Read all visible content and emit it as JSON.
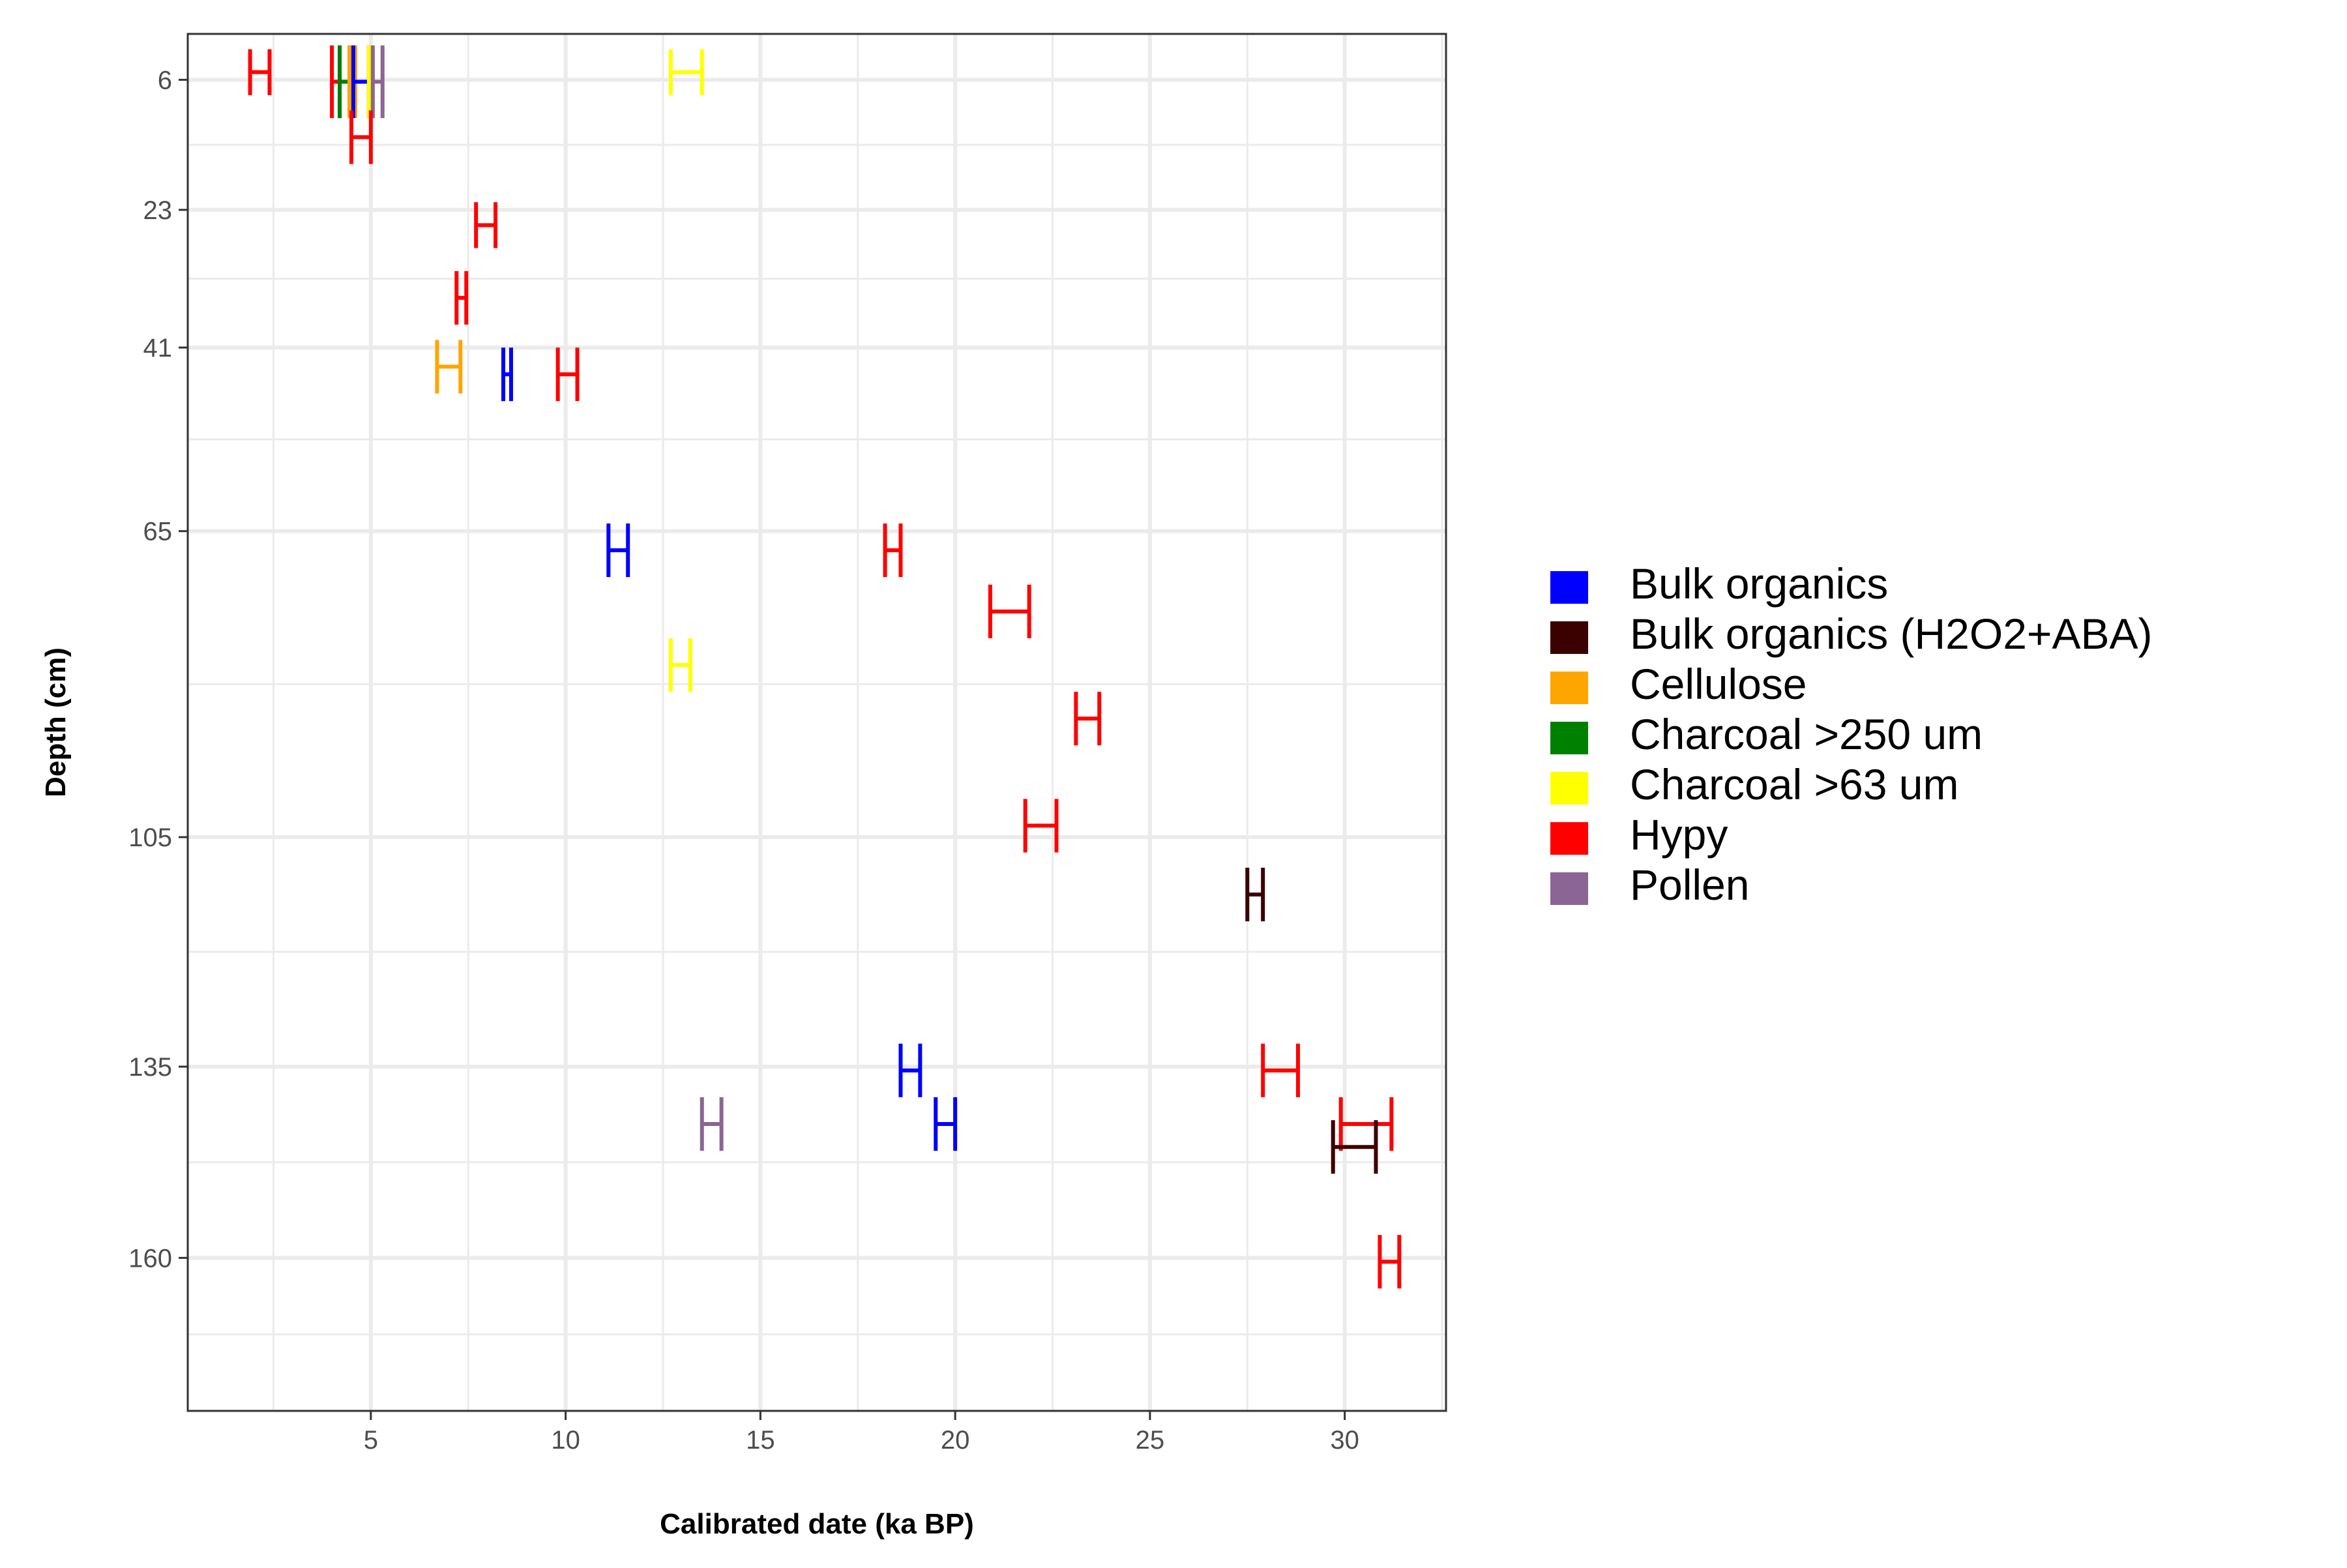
{
  "chart_data": {
    "type": "errorbar",
    "xlabel": "Calibrated date (ka BP)",
    "ylabel": "Depth (cm)",
    "xlim": [
      0.3,
      32.6
    ],
    "ylim": [
      0,
      180
    ],
    "y_reversed": true,
    "x_ticks": [
      5,
      10,
      15,
      20,
      25,
      30
    ],
    "y_ticks": [
      6,
      23,
      41,
      65,
      105,
      135,
      160
    ],
    "grid": true,
    "legend_position": "right",
    "legend": [
      {
        "label": "Bulk organics",
        "color": "#0000FF"
      },
      {
        "label": "Bulk organics (H2O2+ABA)",
        "color": "#3B0000"
      },
      {
        "label": "Cellulose",
        "color": "#FFA500"
      },
      {
        "label": "Charcoal >250 um",
        "color": "#008000"
      },
      {
        "label": "Charcoal >63 um",
        "color": "#FFFF00"
      },
      {
        "label": "Hypy",
        "color": "#FF0000"
      },
      {
        "label": "Pollen",
        "color": "#8B6593"
      }
    ],
    "points": [
      {
        "series": "Hypy",
        "xmin": 1.9,
        "xmax": 2.4,
        "y_top": 2,
        "y_bottom": 8
      },
      {
        "series": "Hypy",
        "xmin": 4.0,
        "xmax": 4.2,
        "y_top": 1.5,
        "y_bottom": 11
      },
      {
        "series": "Charcoal >250 um",
        "xmin": 4.2,
        "xmax": 4.5,
        "y_top": 1.5,
        "y_bottom": 11
      },
      {
        "series": "Cellulose",
        "xmin": 4.45,
        "xmax": 4.6,
        "y_top": 1.5,
        "y_bottom": 11
      },
      {
        "series": "Bulk organics",
        "xmin": 4.55,
        "xmax": 4.95,
        "y_top": 1.5,
        "y_bottom": 11
      },
      {
        "series": "Charcoal >63 um",
        "xmin": 4.95,
        "xmax": 5.05,
        "y_top": 1.5,
        "y_bottom": 11
      },
      {
        "series": "Pollen",
        "xmin": 5.05,
        "xmax": 5.3,
        "y_top": 1.5,
        "y_bottom": 11
      },
      {
        "series": "Charcoal >63 um",
        "xmin": 12.7,
        "xmax": 13.5,
        "y_top": 2,
        "y_bottom": 8
      },
      {
        "series": "Hypy",
        "xmin": 4.5,
        "xmax": 5.0,
        "y_top": 10,
        "y_bottom": 17
      },
      {
        "series": "Hypy",
        "xmin": 7.7,
        "xmax": 8.2,
        "y_top": 22,
        "y_bottom": 28
      },
      {
        "series": "Hypy",
        "xmin": 7.2,
        "xmax": 7.45,
        "y_top": 31,
        "y_bottom": 38
      },
      {
        "series": "Cellulose",
        "xmin": 6.7,
        "xmax": 7.3,
        "y_top": 40,
        "y_bottom": 47
      },
      {
        "series": "Bulk organics",
        "xmin": 8.4,
        "xmax": 8.6,
        "y_top": 41,
        "y_bottom": 48
      },
      {
        "series": "Hypy",
        "xmin": 9.8,
        "xmax": 10.3,
        "y_top": 41,
        "y_bottom": 48
      },
      {
        "series": "Bulk organics",
        "xmin": 11.1,
        "xmax": 11.6,
        "y_top": 64,
        "y_bottom": 71
      },
      {
        "series": "Hypy",
        "xmin": 18.2,
        "xmax": 18.6,
        "y_top": 64,
        "y_bottom": 71
      },
      {
        "series": "Hypy",
        "xmin": 20.9,
        "xmax": 21.9,
        "y_top": 72,
        "y_bottom": 79
      },
      {
        "series": "Charcoal >63 um",
        "xmin": 12.7,
        "xmax": 13.2,
        "y_top": 79,
        "y_bottom": 86
      },
      {
        "series": "Hypy",
        "xmin": 23.1,
        "xmax": 23.7,
        "y_top": 86,
        "y_bottom": 93
      },
      {
        "series": "Hypy",
        "xmin": 21.8,
        "xmax": 22.6,
        "y_top": 100,
        "y_bottom": 107
      },
      {
        "series": "Bulk organics (H2O2+ABA)",
        "xmin": 27.5,
        "xmax": 27.9,
        "y_top": 109,
        "y_bottom": 116
      },
      {
        "series": "Hypy",
        "xmin": 27.9,
        "xmax": 28.8,
        "y_top": 132,
        "y_bottom": 139
      },
      {
        "series": "Bulk organics",
        "xmin": 18.6,
        "xmax": 19.1,
        "y_top": 132,
        "y_bottom": 139
      },
      {
        "series": "Bulk organics",
        "xmin": 19.5,
        "xmax": 20.0,
        "y_top": 139,
        "y_bottom": 146
      },
      {
        "series": "Pollen",
        "xmin": 13.5,
        "xmax": 14.0,
        "y_top": 139,
        "y_bottom": 146
      },
      {
        "series": "Hypy",
        "xmin": 29.9,
        "xmax": 31.2,
        "y_top": 139,
        "y_bottom": 146
      },
      {
        "series": "Bulk organics (H2O2+ABA)",
        "xmin": 29.7,
        "xmax": 30.8,
        "y_top": 142,
        "y_bottom": 149
      },
      {
        "series": "Hypy",
        "xmin": 30.9,
        "xmax": 31.4,
        "y_top": 157,
        "y_bottom": 164
      }
    ]
  }
}
